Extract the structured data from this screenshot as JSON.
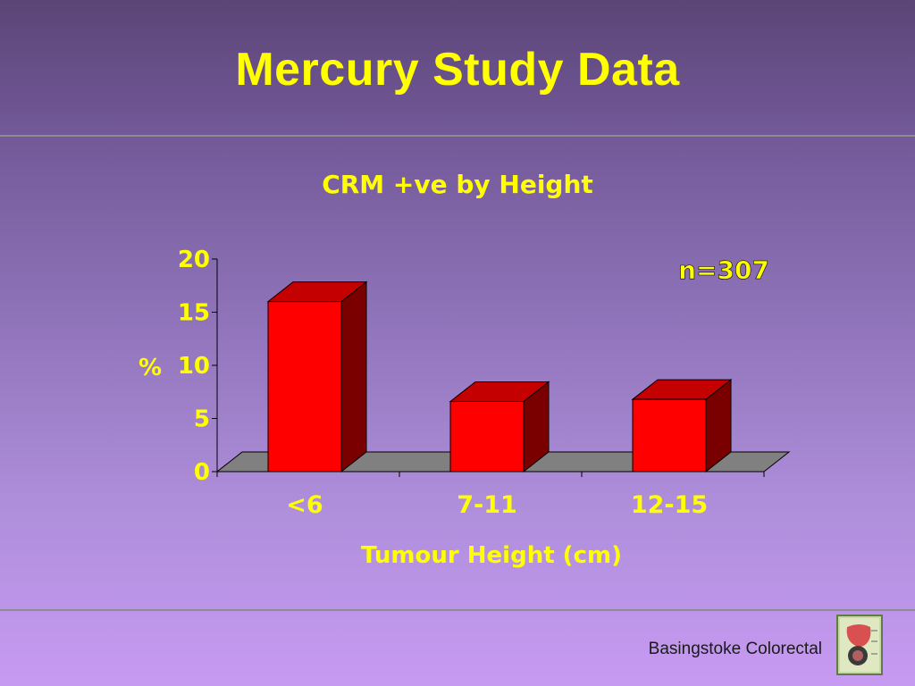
{
  "slide": {
    "title": "Mercury Study Data",
    "footer": "Basingstoke Colorectal"
  },
  "colors": {
    "title": "#ffff00",
    "bar_front": "#ff0000",
    "bar_side": "#7a0000",
    "bar_top": "#c40000",
    "floor": "#808080"
  },
  "chart_data": {
    "type": "bar",
    "title": "CRM +ve by Height",
    "xlabel": "Tumour Height (cm)",
    "ylabel": "%",
    "categories": [
      "<6",
      "7-11",
      "12-15"
    ],
    "values": [
      16,
      6.6,
      6.8
    ],
    "ylim": [
      0,
      20
    ],
    "yticks": [
      0,
      5,
      10,
      15,
      20
    ],
    "annotation": "n=307",
    "grid": false,
    "three_d": true
  }
}
